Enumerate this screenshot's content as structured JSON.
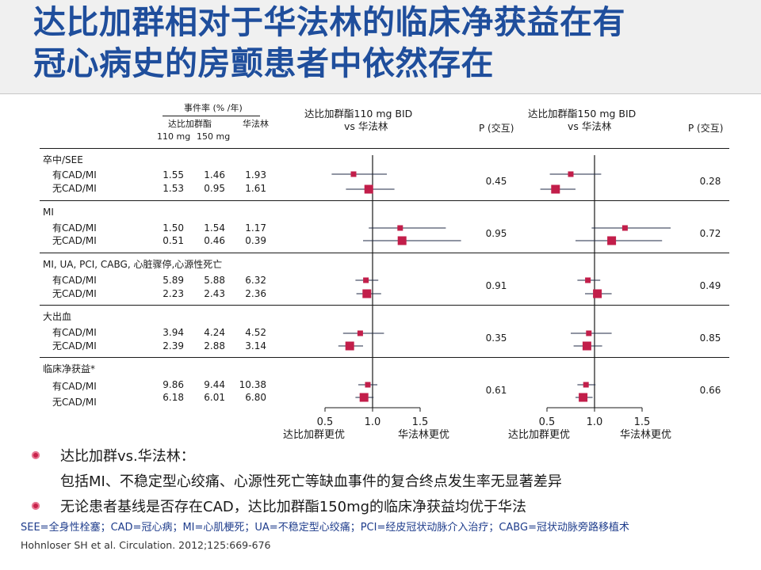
{
  "title": {
    "line1": "达比加群相对于华法林的临床净获益在有",
    "line2": "冠心病史的房颤患者中依然存在"
  },
  "table": {
    "event_rate_header": "事件率 (% /年)",
    "dabigatran_header": "达比加群酯",
    "warfarin_header": "华法林",
    "dose1": "110 mg",
    "dose2": "150 mg",
    "forest1_title_line1": "达比加群酯110 mg BID",
    "forest1_title_line2": "vs 华法林",
    "forest2_title_line1": "达比加群酯150 mg BID",
    "forest2_title_line2": "vs 华法林",
    "p_header_1": "P (交互)",
    "p_header_2": "P (交互)",
    "groups": [
      {
        "name": "卒中/SEE",
        "p110": "0.45",
        "p150": "0.28",
        "rows": [
          {
            "label": "有CAD/MI",
            "d110": "1.55",
            "d150": "1.46",
            "war": "1.93"
          },
          {
            "label": "无CAD/MI",
            "d110": "1.53",
            "d150": "0.95",
            "war": "1.61"
          }
        ]
      },
      {
        "name": "MI",
        "p110": "0.95",
        "p150": "0.72",
        "rows": [
          {
            "label": "有CAD/MI",
            "d110": "1.50",
            "d150": "1.54",
            "war": "1.17"
          },
          {
            "label": "无CAD/MI",
            "d110": "0.51",
            "d150": "0.46",
            "war": "0.39"
          }
        ]
      },
      {
        "name": "MI, UA, PCI, CABG, 心脏骤停,心源性死亡",
        "p110": "0.91",
        "p150": "0.49",
        "rows": [
          {
            "label": "有CAD/MI",
            "d110": "5.89",
            "d150": "5.88",
            "war": "6.32"
          },
          {
            "label": "无CAD/MI",
            "d110": "2.23",
            "d150": "2.43",
            "war": "2.36"
          }
        ]
      },
      {
        "name": "大出血",
        "p110": "0.35",
        "p150": "0.85",
        "rows": [
          {
            "label": "有CAD/MI",
            "d110": "3.94",
            "d150": "4.24",
            "war": "4.52"
          },
          {
            "label": "无CAD/MI",
            "d110": "2.39",
            "d150": "2.88",
            "war": "3.14"
          }
        ]
      },
      {
        "name": "临床净获益*",
        "p110": "0.61",
        "p150": "0.66",
        "rows": [
          {
            "label": "有CAD/MI",
            "d110": "9.86",
            "d150": "9.44",
            "war": "10.38"
          },
          {
            "label": "无CAD/MI",
            "d110": "6.18",
            "d150": "6.01",
            "war": "6.80"
          }
        ]
      }
    ]
  },
  "chart_data": {
    "type": "forest",
    "x_ticks": [
      "0.5",
      "1.0",
      "1.5"
    ],
    "xlim": [
      0.5,
      1.5
    ],
    "reference_line": 1.0,
    "favors_left": "达比加群更优",
    "favors_right": "华法林更优",
    "marker_color": "#c21e4a",
    "panels": [
      {
        "comparison": "110",
        "estimates": [
          {
            "hr": 0.8,
            "lo": 0.57,
            "hi": 1.15,
            "size": "small"
          },
          {
            "hr": 0.96,
            "lo": 0.72,
            "hi": 1.23,
            "size": "large"
          },
          {
            "hr": 1.29,
            "lo": 0.96,
            "hi": 1.77,
            "size": "small"
          },
          {
            "hr": 1.31,
            "lo": 0.9,
            "hi": 1.93,
            "size": "large"
          },
          {
            "hr": 0.93,
            "lo": 0.82,
            "hi": 1.06,
            "size": "small"
          },
          {
            "hr": 0.94,
            "lo": 0.83,
            "hi": 1.09,
            "size": "large"
          },
          {
            "hr": 0.87,
            "lo": 0.69,
            "hi": 1.12,
            "size": "small"
          },
          {
            "hr": 0.76,
            "lo": 0.64,
            "hi": 0.9,
            "size": "large"
          },
          {
            "hr": 0.95,
            "lo": 0.85,
            "hi": 1.05,
            "size": "small"
          },
          {
            "hr": 0.91,
            "lo": 0.82,
            "hi": 1.01,
            "size": "large"
          }
        ]
      },
      {
        "comparison": "150",
        "estimates": [
          {
            "hr": 0.75,
            "lo": 0.53,
            "hi": 1.07,
            "size": "small"
          },
          {
            "hr": 0.59,
            "lo": 0.43,
            "hi": 0.8,
            "size": "large"
          },
          {
            "hr": 1.32,
            "lo": 0.97,
            "hi": 1.8,
            "size": "small"
          },
          {
            "hr": 1.18,
            "lo": 0.8,
            "hi": 1.71,
            "size": "large"
          },
          {
            "hr": 0.93,
            "lo": 0.82,
            "hi": 1.06,
            "size": "small"
          },
          {
            "hr": 1.03,
            "lo": 0.9,
            "hi": 1.18,
            "size": "large"
          },
          {
            "hr": 0.94,
            "lo": 0.75,
            "hi": 1.18,
            "size": "small"
          },
          {
            "hr": 0.92,
            "lo": 0.78,
            "hi": 1.08,
            "size": "large"
          },
          {
            "hr": 0.91,
            "lo": 0.82,
            "hi": 1.01,
            "size": "small"
          },
          {
            "hr": 0.88,
            "lo": 0.8,
            "hi": 0.98,
            "size": "large"
          }
        ]
      }
    ]
  },
  "bullets": {
    "b1": "达比加群vs.华法林：",
    "b1_sub": "包括MI、不稳定型心绞痛、心源性死亡等缺血事件的复合终点发生率无显著差异",
    "b2": "无论患者基线是否存在CAD，达比加群酯150mg的临床净获益均优于华法"
  },
  "footnote": {
    "abbrev": "SEE=全身性栓塞；CAD=冠心病；MI=心肌梗死；UA=不稳定型心绞痛；PCI=经皮冠状动脉介入治疗；CABG=冠状动脉旁路移植术",
    "citation": "Hohnloser SH et al. Circulation. 2012;125:669-676"
  }
}
